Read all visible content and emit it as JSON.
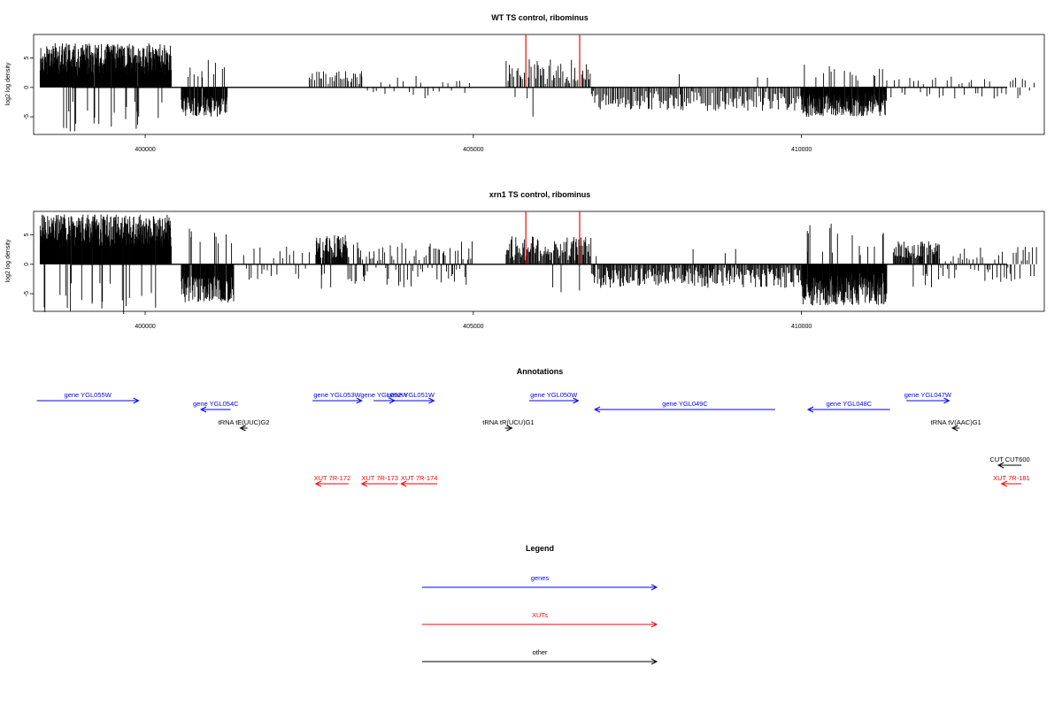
{
  "chart_data": [
    {
      "type": "bar",
      "title": "WT TS control, ribominus",
      "ylabel": "log2 log density",
      "xlabel": "",
      "xlim": [
        398300,
        413700
      ],
      "ylim": [
        -8,
        9
      ],
      "x_ticks": [
        400000,
        405000,
        410000
      ],
      "x_tick_labels": [
        "400000",
        "405000",
        "410000"
      ],
      "y_ticks": [
        -5,
        0,
        5
      ],
      "y_tick_labels": [
        "-5",
        "0",
        "5"
      ],
      "colors": {
        "bars": "#000000",
        "highlight": "#ff0000"
      },
      "spikes": [
        {
          "x": 405800,
          "y": 9,
          "color": "#ff0000"
        },
        {
          "x": 406620,
          "y": 9,
          "color": "#ff0000"
        }
      ],
      "segments": [
        {
          "start": 398400,
          "end": 400400,
          "min": 2,
          "max": 7.5,
          "density": 3,
          "sign": 1
        },
        {
          "start": 400550,
          "end": 401250,
          "min": 1.5,
          "max": 5,
          "density": 2,
          "sign": -1
        },
        {
          "start": 402500,
          "end": 403300,
          "min": 0.5,
          "max": 3,
          "density": 0.5,
          "sign": 1
        },
        {
          "start": 403300,
          "end": 405000,
          "min": 0.5,
          "max": 2,
          "density": 0.2,
          "sign": 0
        },
        {
          "start": 405500,
          "end": 406800,
          "min": 0.5,
          "max": 5,
          "density": 0.6,
          "sign": 1
        },
        {
          "start": 406800,
          "end": 410000,
          "min": 0.5,
          "max": 4,
          "density": 0.7,
          "sign": -1
        },
        {
          "start": 410000,
          "end": 411300,
          "min": 1,
          "max": 5,
          "density": 2.5,
          "sign": -1
        },
        {
          "start": 411300,
          "end": 413600,
          "min": 0.5,
          "max": 2,
          "density": 0.25,
          "sign": 0
        }
      ]
    },
    {
      "type": "bar",
      "title": "xrn1 TS control, ribominus",
      "ylabel": "log2 log density",
      "xlabel": "",
      "xlim": [
        398300,
        413700
      ],
      "ylim": [
        -8,
        9
      ],
      "x_ticks": [
        400000,
        405000,
        410000
      ],
      "x_tick_labels": [
        "400000",
        "405000",
        "410000"
      ],
      "y_ticks": [
        -5,
        0,
        5
      ],
      "y_tick_labels": [
        "-5",
        "0",
        "5"
      ],
      "colors": {
        "bars": "#000000",
        "highlight": "#ff0000"
      },
      "spikes": [
        {
          "x": 405800,
          "y": 9,
          "color": "#ff0000"
        },
        {
          "x": 406620,
          "y": 9,
          "color": "#ff0000"
        }
      ],
      "segments": [
        {
          "start": 398400,
          "end": 400400,
          "min": 3,
          "max": 8.5,
          "density": 3,
          "sign": 1
        },
        {
          "start": 400550,
          "end": 401350,
          "min": 2,
          "max": 6.5,
          "density": 2,
          "sign": -1
        },
        {
          "start": 401500,
          "end": 402500,
          "min": 0.5,
          "max": 3,
          "density": 0.3,
          "sign": 0
        },
        {
          "start": 402600,
          "end": 403100,
          "min": 1,
          "max": 5,
          "density": 1.5,
          "sign": 1
        },
        {
          "start": 403100,
          "end": 405000,
          "min": 0.5,
          "max": 4,
          "density": 0.6,
          "sign": 0
        },
        {
          "start": 405500,
          "end": 406800,
          "min": 0.5,
          "max": 5,
          "density": 1,
          "sign": 1
        },
        {
          "start": 406800,
          "end": 410000,
          "min": 0.5,
          "max": 4,
          "density": 0.9,
          "sign": -1
        },
        {
          "start": 410000,
          "end": 411300,
          "min": 1.5,
          "max": 7,
          "density": 3,
          "sign": -1
        },
        {
          "start": 411400,
          "end": 412100,
          "min": 1,
          "max": 4,
          "density": 1.2,
          "sign": 1
        },
        {
          "start": 412100,
          "end": 413600,
          "min": 0.5,
          "max": 3,
          "density": 0.5,
          "sign": 0
        }
      ]
    }
  ],
  "annotations": {
    "title": "Annotations",
    "x_range": [
      398300,
      413700
    ],
    "items": [
      {
        "label": "gene YGL055W",
        "color": "#0000ff",
        "start": 398350,
        "end": 399900,
        "dir": "right",
        "row": 0
      },
      {
        "label": "gene YGL054C",
        "color": "#0000ff",
        "start": 400850,
        "end": 401300,
        "dir": "left",
        "row": 1
      },
      {
        "label": "tRNA tE(UUC)G2",
        "color": "#000000",
        "start": 401450,
        "end": 401500,
        "dir": "left",
        "row": 2
      },
      {
        "label": "gene YGL053W",
        "color": "#0000ff",
        "start": 402550,
        "end": 403300,
        "dir": "right",
        "row": 0
      },
      {
        "label": "gene YGL052W",
        "color": "#0000ff",
        "start": 403480,
        "end": 403800,
        "dir": "right",
        "row": 0
      },
      {
        "label": "gene YGL051W",
        "color": "#0000ff",
        "start": 403700,
        "end": 404400,
        "dir": "right",
        "row": 0
      },
      {
        "label": "tRNA tR(UCU)G1",
        "color": "#000000",
        "start": 405480,
        "end": 405560,
        "dir": "right",
        "row": 2
      },
      {
        "label": "gene YGL050W",
        "color": "#0000ff",
        "start": 405850,
        "end": 406600,
        "dir": "right",
        "row": 0
      },
      {
        "label": "gene YGL049C",
        "color": "#0000ff",
        "start": 406850,
        "end": 409600,
        "dir": "left",
        "row": 1
      },
      {
        "label": "gene YGL048C",
        "color": "#0000ff",
        "start": 410100,
        "end": 411350,
        "dir": "left",
        "row": 1
      },
      {
        "label": "gene YGL047W",
        "color": "#0000ff",
        "start": 411600,
        "end": 412250,
        "dir": "right",
        "row": 0
      },
      {
        "label": "tRNA tV(AAC)G1",
        "color": "#000000",
        "start": 412300,
        "end": 412380,
        "dir": "left",
        "row": 2
      },
      {
        "label": "CUT CUT600",
        "color": "#000000",
        "start": 413000,
        "end": 413350,
        "dir": "left",
        "row": 3
      },
      {
        "label": "XUT 7R-172",
        "color": "#ff0000",
        "start": 402600,
        "end": 403100,
        "dir": "left",
        "row": 4
      },
      {
        "label": "XUT 7R-173",
        "color": "#ff0000",
        "start": 403300,
        "end": 403850,
        "dir": "left",
        "row": 4
      },
      {
        "label": "XUT 7R-174",
        "color": "#ff0000",
        "start": 403900,
        "end": 404450,
        "dir": "left",
        "row": 4
      },
      {
        "label": "XUT 7R-181",
        "color": "#ff0000",
        "start": 413050,
        "end": 413350,
        "dir": "left",
        "row": 4
      }
    ]
  },
  "legend": {
    "title": "Legend",
    "items": [
      {
        "label": "genes",
        "color": "#0000ff"
      },
      {
        "label": "XUTs",
        "color": "#ff0000"
      },
      {
        "label": "other",
        "color": "#000000"
      }
    ]
  }
}
